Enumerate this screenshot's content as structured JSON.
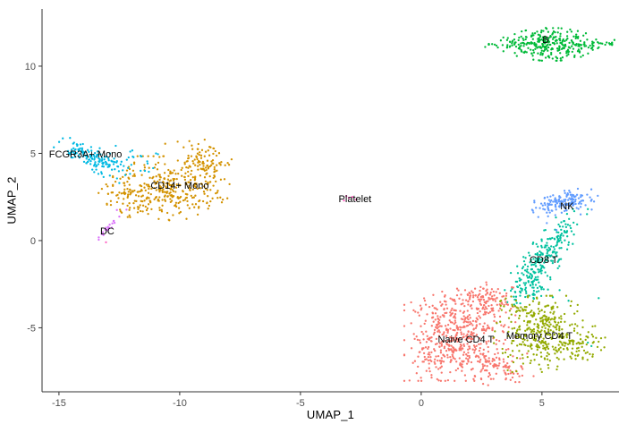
{
  "chart_data": {
    "type": "scatter",
    "title": "",
    "xlabel": "UMAP_1",
    "ylabel": "UMAP_2",
    "x_ticks": [
      -15,
      -10,
      -5,
      0,
      5
    ],
    "y_ticks": [
      -5,
      0,
      5,
      10
    ],
    "xlim": [
      -15.7,
      8.19
    ],
    "ylim": [
      -8.67,
      13.28
    ],
    "grid": false,
    "legend": "none",
    "background_color": "#FFFFFF",
    "axis_color": "#333333",
    "tick_label_color": "#4D4D4D",
    "cluster_label_color": "#000000",
    "point_radius": 1.15,
    "clusters": [
      {
        "name": "CD14+ Mono",
        "color": "#D39200",
        "label": {
          "x": -10.0,
          "y": 3.18
        },
        "blobs": [
          {
            "cx": -10.35,
            "cy": 3.0,
            "sx": 1.05,
            "sy": 0.8,
            "angle": 0,
            "n": 290
          },
          {
            "cx": -9.0,
            "cy": 4.4,
            "sx": 0.5,
            "sy": 0.65,
            "angle": 0,
            "n": 100
          },
          {
            "cx": -12.0,
            "cy": 2.55,
            "sx": 0.55,
            "sy": 0.5,
            "angle": -30,
            "n": 70
          }
        ],
        "points": [
          [
            -12.4,
            1.6
          ],
          [
            -12.15,
            1.35
          ],
          [
            -9.6,
            5.7
          ],
          [
            -10.6,
            5.55
          ]
        ]
      },
      {
        "name": "FCGR3A+ Mono",
        "color": "#00B9E3",
        "label": {
          "x": -13.9,
          "y": 4.97
        },
        "blobs": [
          {
            "cx": -13.55,
            "cy": 4.7,
            "sx": 0.75,
            "sy": 0.27,
            "angle": -36,
            "n": 150
          },
          {
            "cx": -11.7,
            "cy": 4.6,
            "sx": 0.55,
            "sy": 0.45,
            "angle": -20,
            "n": 16
          }
        ],
        "points": [
          [
            -10.9,
            4.95
          ],
          [
            -11.1,
            4.15
          ],
          [
            -12.5,
            3.3
          ]
        ]
      },
      {
        "name": "DC",
        "color": "#DB72FB",
        "label": {
          "x": -13.0,
          "y": 0.56
        },
        "blobs": [
          {
            "cx": -12.9,
            "cy": 0.85,
            "sx": 0.5,
            "sy": 0.07,
            "angle": 58,
            "n": 20
          }
        ],
        "points": [
          [
            -12.6,
            1.75
          ],
          [
            -13.35,
            0.05
          ]
        ]
      },
      {
        "name": "Platelet",
        "color": "#FF61C3",
        "label": {
          "x": -2.74,
          "y": 2.41
        },
        "blobs": [],
        "points": [
          [
            -3.1,
            2.55
          ],
          [
            -3.0,
            2.45
          ],
          [
            -2.85,
            2.5
          ],
          [
            -3.2,
            2.3
          ],
          [
            -2.7,
            2.35
          ],
          [
            -13.05,
            -0.1
          ]
        ]
      },
      {
        "name": "B",
        "color": "#00BA38",
        "label": {
          "x": 5.15,
          "y": 11.54
        },
        "blobs": [
          {
            "type": "lens",
            "cx": 5.35,
            "cy": 11.25,
            "hw": 2.55,
            "hh": 0.95,
            "n": 330
          }
        ],
        "points": [
          [
            2.65,
            11.1
          ],
          [
            7.9,
            11.35
          ],
          [
            8.0,
            11.5
          ]
        ]
      },
      {
        "name": "CD8 T",
        "color": "#00C19F",
        "label": {
          "x": 5.07,
          "y": -1.08
        },
        "blobs": [
          {
            "cx": 5.1,
            "cy": -0.95,
            "sx": 0.34,
            "sy": 1.3,
            "angle": -26,
            "n": 240
          },
          {
            "cx": 4.6,
            "cy": -2.7,
            "sx": 0.5,
            "sy": 0.4,
            "angle": 0,
            "n": 45
          }
        ],
        "points": [
          [
            6.9,
            1.8
          ],
          [
            5.45,
            -3.25
          ],
          [
            6.1,
            -3.45
          ],
          [
            7.35,
            -3.3
          ],
          [
            6.9,
            -5.85
          ],
          [
            7.05,
            -6.05
          ],
          [
            4.1,
            -3.6
          ],
          [
            4.4,
            -3.2
          ]
        ]
      },
      {
        "name": "NK",
        "color": "#619CFF",
        "label": {
          "x": 6.04,
          "y": 2.0
        },
        "blobs": [
          {
            "cx": 5.95,
            "cy": 2.2,
            "sx": 0.62,
            "sy": 0.28,
            "angle": 12,
            "n": 145
          }
        ],
        "points": [
          [
            5.2,
            1.0
          ],
          [
            5.6,
            0.6
          ],
          [
            4.85,
            1.35
          ],
          [
            6.6,
            1.5
          ]
        ]
      },
      {
        "name": "Naive CD4 T",
        "color": "#F8766D",
        "label": {
          "x": 1.85,
          "y": -5.64
        },
        "blobs": [
          {
            "cx": 1.6,
            "cy": -5.4,
            "sx": 1.0,
            "sy": 1.15,
            "angle": 0,
            "n": 430
          },
          {
            "cx": 2.55,
            "cy": -3.35,
            "sx": 0.55,
            "sy": 0.45,
            "angle": 0,
            "n": 110
          },
          {
            "cx": 3.1,
            "cy": -7.3,
            "sx": 0.7,
            "sy": 0.45,
            "angle": -10,
            "n": 100
          },
          {
            "cx": 0.6,
            "cy": -6.6,
            "sx": 0.5,
            "sy": 0.6,
            "angle": 0,
            "n": 60
          }
        ],
        "points": []
      },
      {
        "name": "Memory CD4 T",
        "color": "#93AA00",
        "label": {
          "x": 4.89,
          "y": -5.44
        },
        "blobs": [
          {
            "cx": 4.85,
            "cy": -5.35,
            "sx": 0.8,
            "sy": 0.95,
            "angle": 0,
            "n": 300
          },
          {
            "cx": 6.3,
            "cy": -5.9,
            "sx": 0.6,
            "sy": 0.5,
            "angle": -15,
            "n": 70
          },
          {
            "cx": 4.5,
            "cy": -3.95,
            "sx": 0.6,
            "sy": 0.3,
            "angle": 0,
            "n": 40
          }
        ],
        "points": [
          [
            7.3,
            -6.1
          ],
          [
            7.45,
            -5.6
          ],
          [
            7.2,
            -4.9
          ]
        ]
      }
    ]
  }
}
